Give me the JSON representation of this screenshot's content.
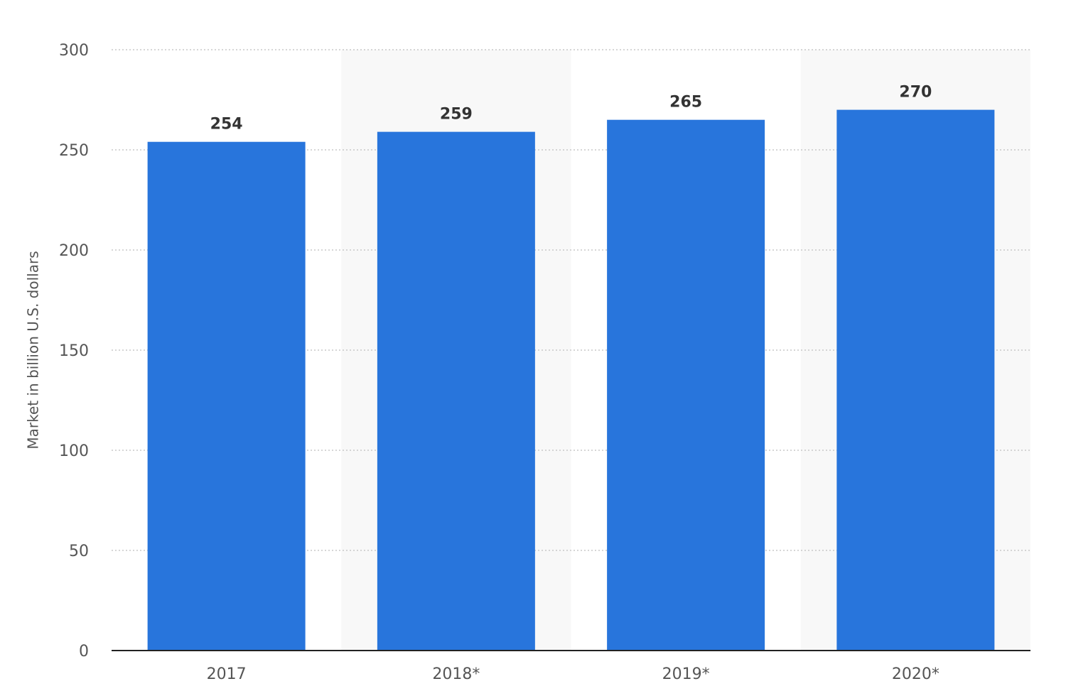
{
  "chart_data": {
    "type": "bar",
    "y_axis_label": "Market in billion U.S. dollars",
    "categories": [
      "2017",
      "2018*",
      "2019*",
      "2020*"
    ],
    "values": [
      254,
      259,
      265,
      270
    ],
    "color": "#2875dc",
    "ylim": [
      0,
      300
    ],
    "yticks": [
      0,
      50,
      100,
      150,
      200,
      250,
      300
    ],
    "grid": true
  }
}
